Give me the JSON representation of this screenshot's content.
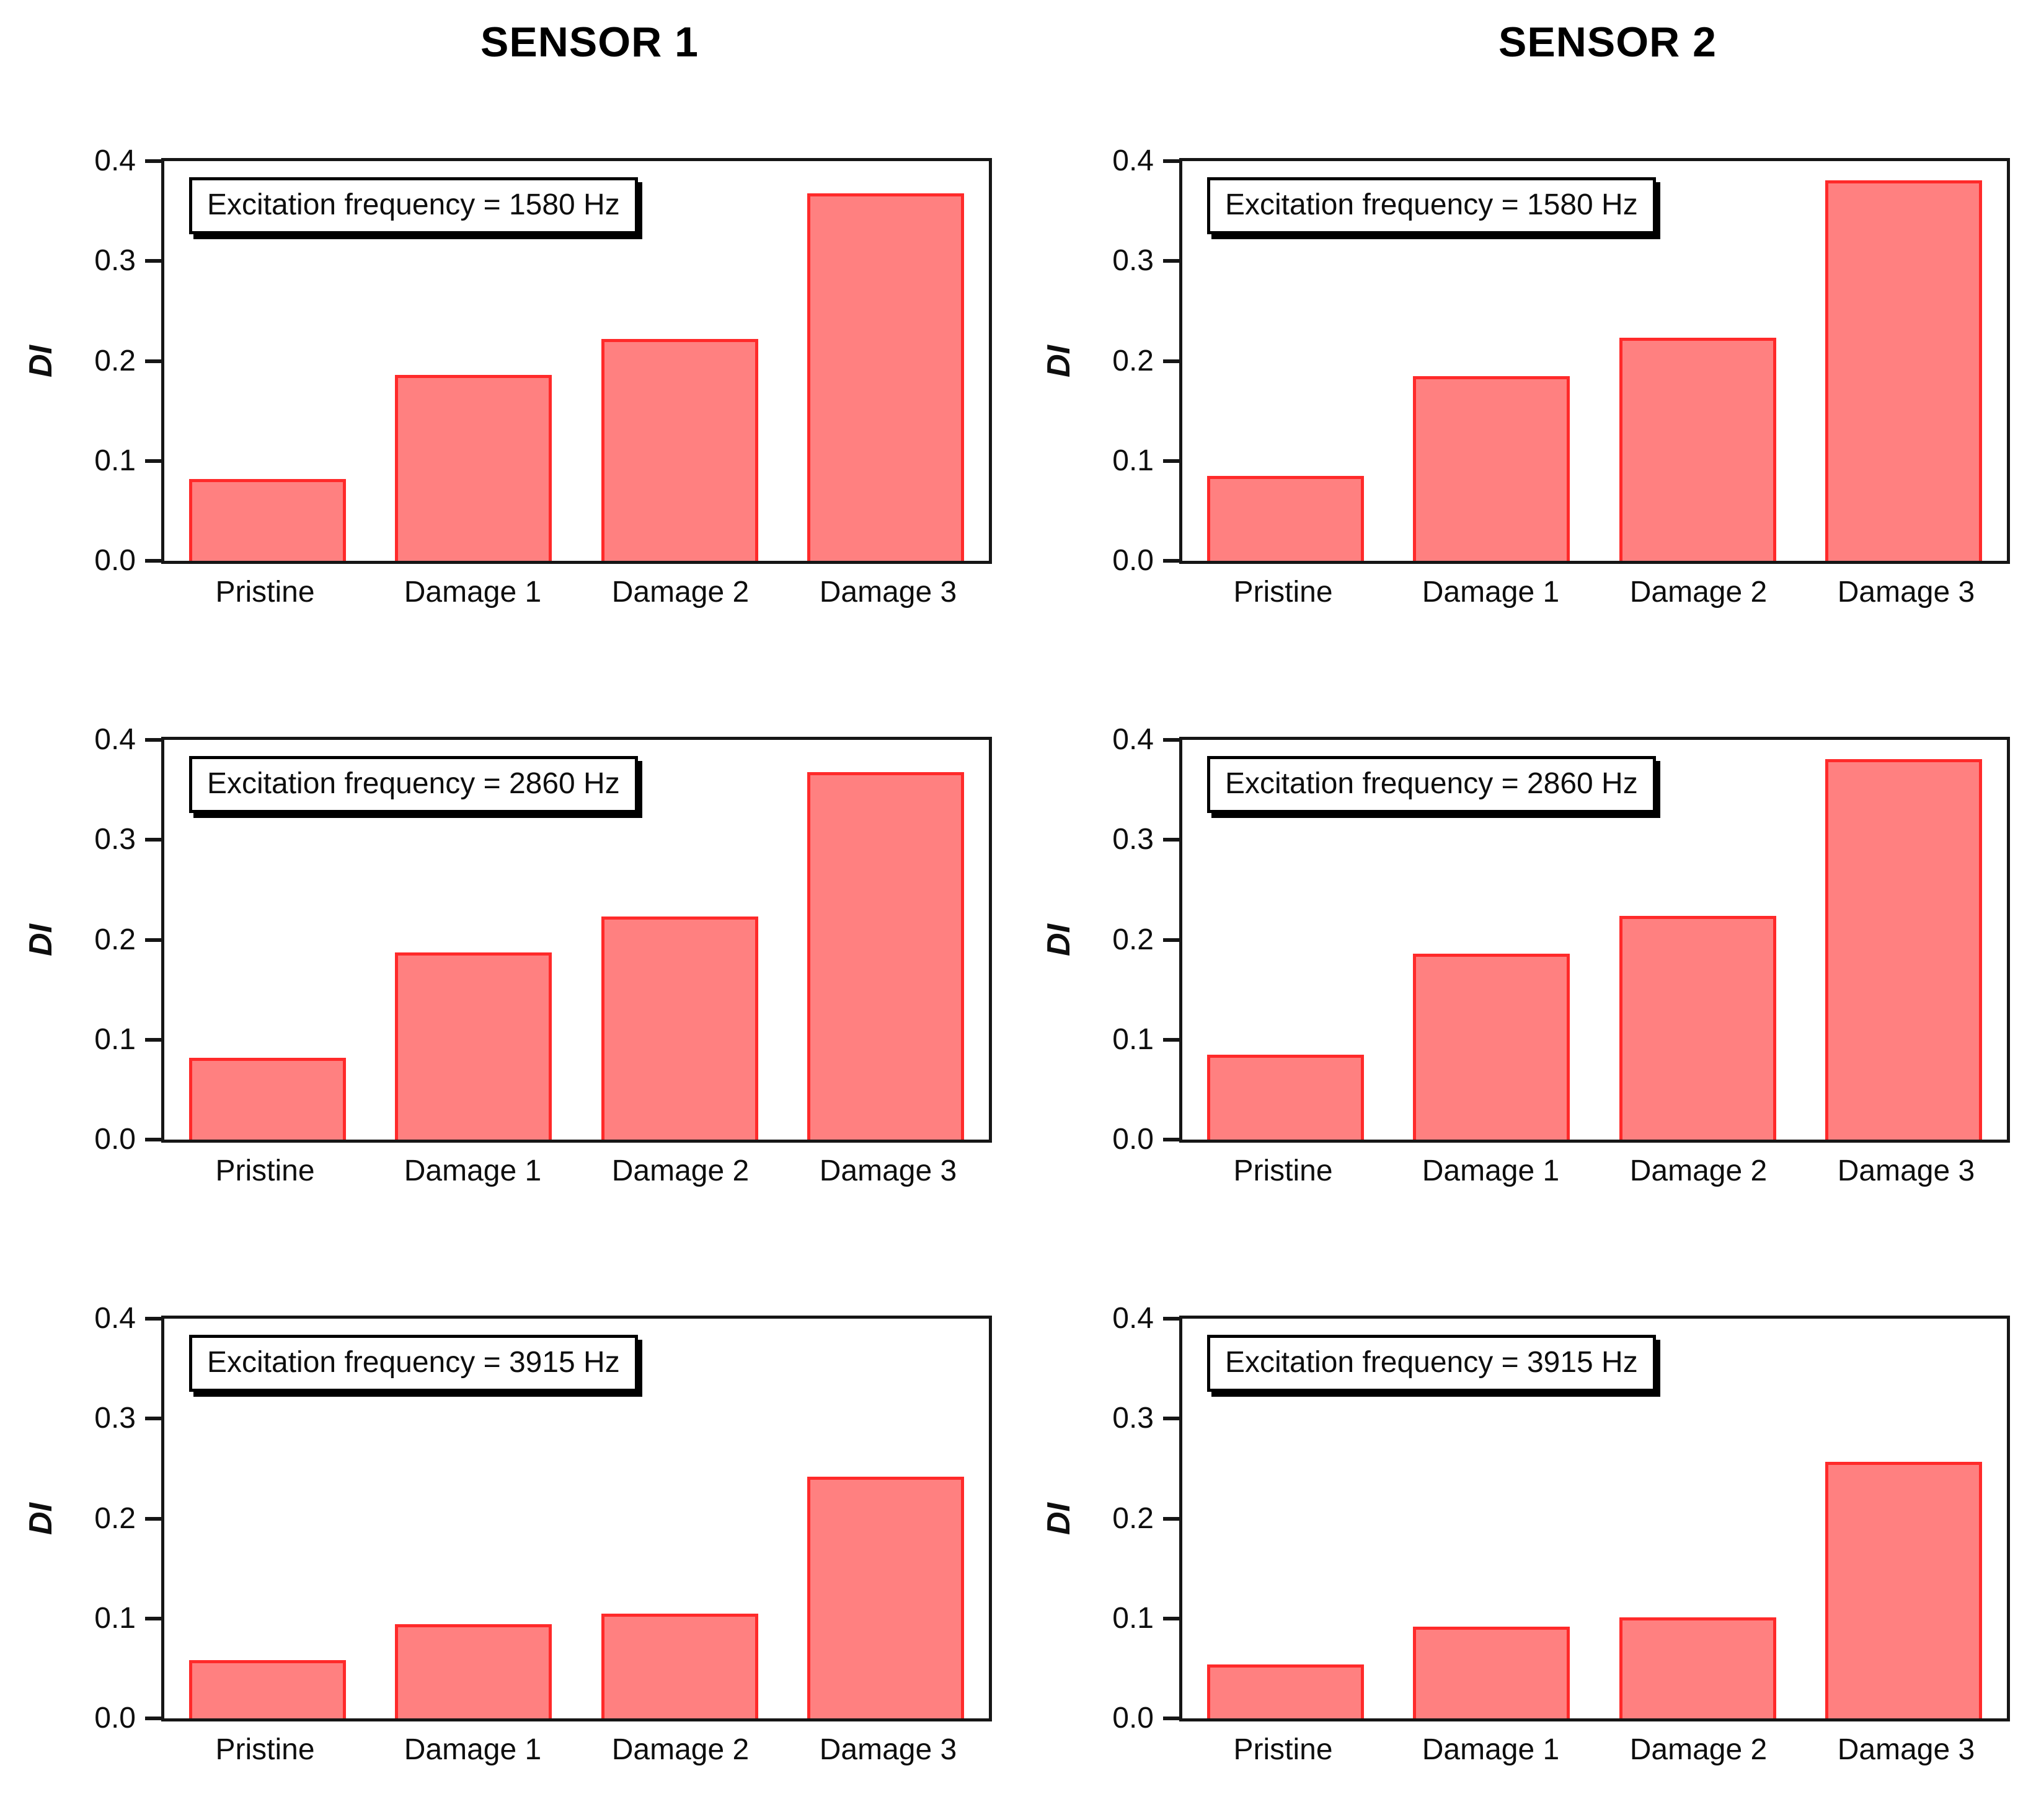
{
  "figure": {
    "background": "#ffffff",
    "columns": [
      {
        "title": "SENSOR 1"
      },
      {
        "title": "SENSOR 2"
      }
    ]
  },
  "colors": {
    "bar_fill": "#ff8080",
    "bar_edge": "#ff2a2a",
    "axis": "#161616",
    "annotation_border": "#000000",
    "annotation_background": "#ffffff",
    "text": "#0e0e0e"
  },
  "chart_data": [
    {
      "type": "bar",
      "column_title": "SENSOR 1",
      "annotation": "Excitation frequency = 1580 Hz",
      "categories": [
        "Pristine",
        "Damage 1",
        "Damage 2",
        "Damage 3"
      ],
      "values": [
        0.082,
        0.186,
        0.222,
        0.368
      ],
      "ylabel": "DI",
      "xlabel": "",
      "ylim": [
        0,
        0.4
      ],
      "yticks": [
        "0.0",
        "0.1",
        "0.2",
        "0.3",
        "0.4"
      ],
      "grid": false,
      "legend": "none"
    },
    {
      "type": "bar",
      "column_title": "SENSOR 2",
      "annotation": "Excitation frequency = 1580 Hz",
      "categories": [
        "Pristine",
        "Damage 1",
        "Damage 2",
        "Damage 3"
      ],
      "values": [
        0.085,
        0.185,
        0.223,
        0.381
      ],
      "ylabel": "DI",
      "xlabel": "",
      "ylim": [
        0,
        0.4
      ],
      "yticks": [
        "0.0",
        "0.1",
        "0.2",
        "0.3",
        "0.4"
      ],
      "grid": false,
      "legend": "none"
    },
    {
      "type": "bar",
      "column_title": "SENSOR 1",
      "annotation": "Excitation frequency = 2860 Hz",
      "categories": [
        "Pristine",
        "Damage 1",
        "Damage 2",
        "Damage 3"
      ],
      "values": [
        0.082,
        0.187,
        0.223,
        0.368
      ],
      "ylabel": "DI",
      "xlabel": "",
      "ylim": [
        0,
        0.4
      ],
      "yticks": [
        "0.0",
        "0.1",
        "0.2",
        "0.3",
        "0.4"
      ],
      "grid": false,
      "legend": "none"
    },
    {
      "type": "bar",
      "column_title": "SENSOR 2",
      "annotation": "Excitation frequency = 2860 Hz",
      "categories": [
        "Pristine",
        "Damage 1",
        "Damage 2",
        "Damage 3"
      ],
      "values": [
        0.085,
        0.186,
        0.224,
        0.381
      ],
      "ylabel": "DI",
      "xlabel": "",
      "ylim": [
        0,
        0.4
      ],
      "yticks": [
        "0.0",
        "0.1",
        "0.2",
        "0.3",
        "0.4"
      ],
      "grid": false,
      "legend": "none"
    },
    {
      "type": "bar",
      "column_title": "SENSOR 1",
      "annotation": "Excitation frequency = 3915 Hz",
      "categories": [
        "Pristine",
        "Damage 1",
        "Damage 2",
        "Damage 3"
      ],
      "values": [
        0.058,
        0.094,
        0.105,
        0.242
      ],
      "ylabel": "DI",
      "xlabel": "",
      "ylim": [
        0,
        0.4
      ],
      "yticks": [
        "0.0",
        "0.1",
        "0.2",
        "0.3",
        "0.4"
      ],
      "grid": false,
      "legend": "none"
    },
    {
      "type": "bar",
      "column_title": "SENSOR 2",
      "annotation": "Excitation frequency = 3915 Hz",
      "categories": [
        "Pristine",
        "Damage 1",
        "Damage 2",
        "Damage 3"
      ],
      "values": [
        0.054,
        0.092,
        0.101,
        0.257
      ],
      "ylabel": "DI",
      "xlabel": "",
      "ylim": [
        0,
        0.4
      ],
      "yticks": [
        "0.0",
        "0.1",
        "0.2",
        "0.3",
        "0.4"
      ],
      "grid": false,
      "legend": "none"
    }
  ]
}
